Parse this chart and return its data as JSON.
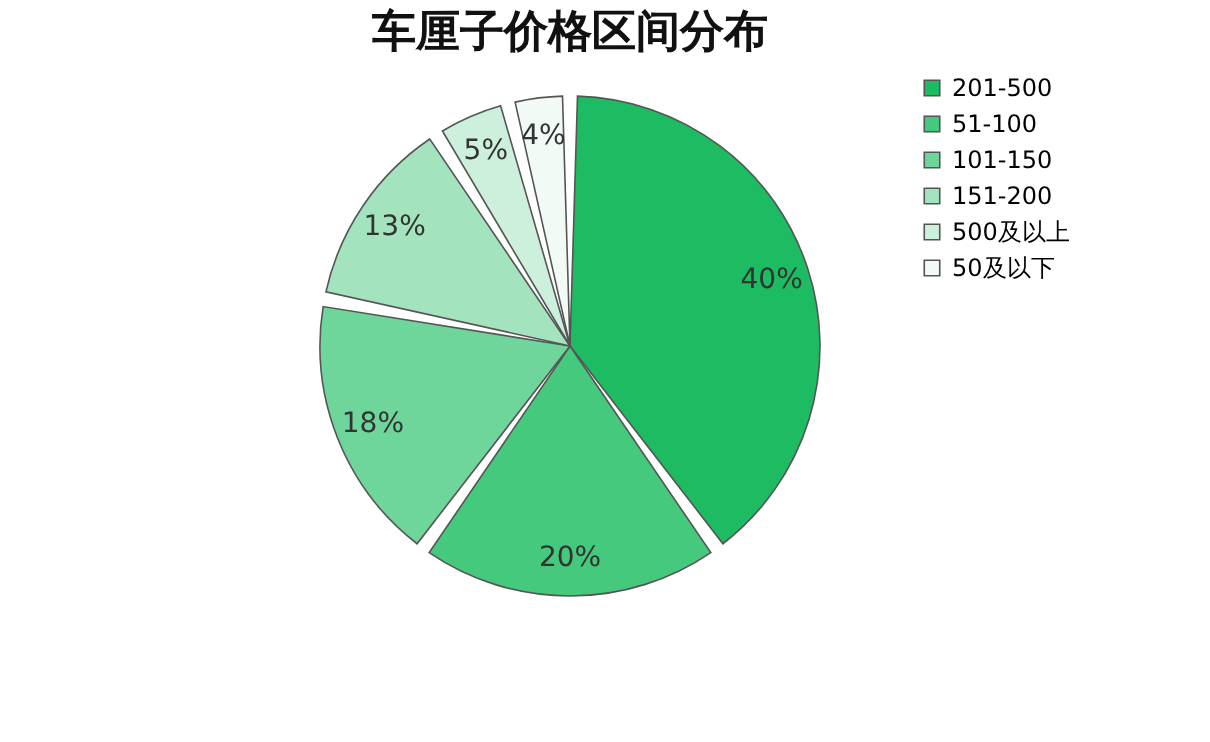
{
  "chart_data": {
    "type": "pie",
    "title": "车厘子价格区间分布",
    "categories": [
      "201-500",
      "51-100",
      "101-150",
      "151-200",
      "500及以上",
      "50及以下"
    ],
    "values": [
      40,
      20,
      18,
      13,
      5,
      4
    ],
    "colors": [
      "#1dbb62",
      "#45c97d",
      "#6fd69b",
      "#a3e4bf",
      "#ccf0dc",
      "#f1faf5"
    ],
    "value_labels": [
      "40%",
      "20%",
      "18%",
      "13%",
      "5%",
      "4%"
    ],
    "legend": "right"
  }
}
